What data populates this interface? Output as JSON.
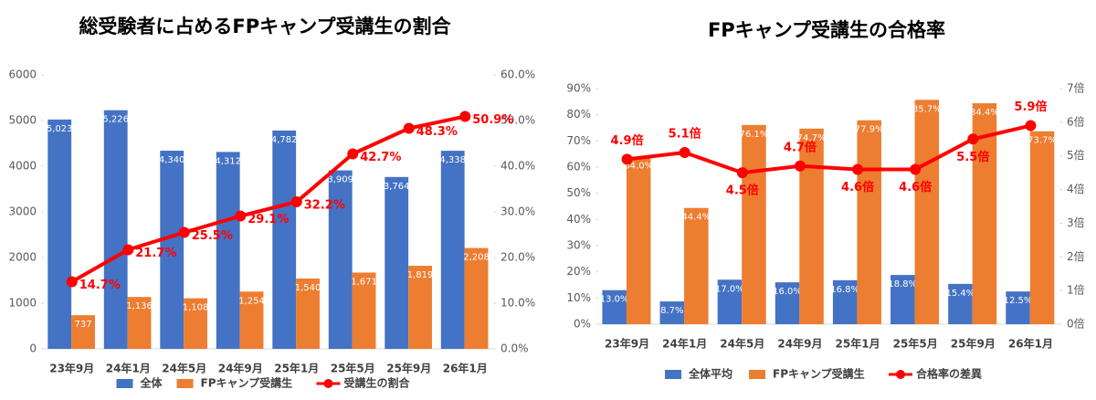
{
  "chart_data": [
    {
      "type": "bar",
      "title": "総受験者に占めるFPキャンプ受講生の割合",
      "categories": [
        "23年9月",
        "24年1月",
        "24年5月",
        "24年9月",
        "25年1月",
        "25年5月",
        "25年9月",
        "26年1月"
      ],
      "series": [
        {
          "name": "全体",
          "color": "#4472c4",
          "values": [
            5023,
            5226,
            4340,
            4312,
            4782,
            3909,
            3764,
            4338
          ],
          "value_labels": [
            "5,023",
            "5,226",
            "4,340",
            "4,312",
            "4,782",
            "3,909",
            "3,764",
            "4,338"
          ]
        },
        {
          "name": "FPキャンプ受講生",
          "color": "#ed7d31",
          "values": [
            737,
            1136,
            1108,
            1254,
            1540,
            1671,
            1819,
            2208
          ],
          "value_labels": [
            "737",
            "1,136",
            "1,108",
            "1,254",
            "1,540",
            "1,671",
            "1,819",
            "2,208"
          ]
        },
        {
          "name": "受講生の割合",
          "color": "#ff0000",
          "type": "line",
          "axis": "y2",
          "values": [
            14.7,
            21.7,
            25.5,
            29.1,
            32.2,
            42.7,
            48.3,
            50.9
          ],
          "value_labels": [
            "14.7%",
            "21.7%",
            "25.5%",
            "29.1%",
            "32.2%",
            "42.7%",
            "48.3%",
            "50.9%"
          ]
        }
      ],
      "ylim": [
        0,
        6000
      ],
      "yticks": [
        0,
        1000,
        2000,
        3000,
        4000,
        5000,
        6000
      ],
      "y2lim": [
        0,
        60
      ],
      "y2ticks": [
        {
          "value": 0,
          "label": "0.0%"
        },
        {
          "value": 10,
          "label": "10.0%"
        },
        {
          "value": 20,
          "label": "20.0%"
        },
        {
          "value": 30,
          "label": "30.0%"
        },
        {
          "value": 40,
          "label": "40.0%"
        },
        {
          "value": 50,
          "label": "50.0%"
        },
        {
          "value": 60,
          "label": "60.0%"
        }
      ],
      "grid": false
    },
    {
      "type": "bar",
      "title": "FPキャンプ受講生の合格率",
      "categories": [
        "23年9月",
        "24年1月",
        "24年5月",
        "24年9月",
        "25年1月",
        "25年5月",
        "25年9月",
        "26年1月"
      ],
      "series": [
        {
          "name": "全体平均",
          "color": "#4472c4",
          "values": [
            13.0,
            8.7,
            17.0,
            16.0,
            16.8,
            18.8,
            15.4,
            12.5
          ],
          "value_labels": [
            "13.0%",
            "8.7%",
            "17.0%",
            "16.0%",
            "16.8%",
            "18.8%",
            "15.4%",
            "12.5%"
          ]
        },
        {
          "name": "FPキャンプ受講生",
          "color": "#ed7d31",
          "values": [
            64.0,
            44.4,
            76.1,
            74.7,
            77.9,
            85.7,
            84.4,
            73.7
          ],
          "value_labels": [
            "64.0%",
            "44.4%",
            "76.1%",
            "74.7%",
            "77.9%",
            "85.7%",
            "84.4%",
            "73.7%"
          ]
        },
        {
          "name": "合格率の差異",
          "color": "#ff0000",
          "type": "line",
          "axis": "y2",
          "values": [
            4.9,
            5.1,
            4.5,
            4.7,
            4.6,
            4.6,
            5.5,
            5.9
          ],
          "value_labels": [
            "4.9倍",
            "5.1倍",
            "4.5倍",
            "4.7倍",
            "4.6倍",
            "4.6倍",
            "5.5倍",
            "5.9倍"
          ]
        }
      ],
      "ylim": [
        0,
        90
      ],
      "yticks": [
        {
          "value": 0,
          "label": "0%"
        },
        {
          "value": 10,
          "label": "10%"
        },
        {
          "value": 20,
          "label": "20%"
        },
        {
          "value": 30,
          "label": "30%"
        },
        {
          "value": 40,
          "label": "40%"
        },
        {
          "value": 50,
          "label": "50%"
        },
        {
          "value": 60,
          "label": "60%"
        },
        {
          "value": 70,
          "label": "70%"
        },
        {
          "value": 80,
          "label": "80%"
        },
        {
          "value": 90,
          "label": "90%"
        }
      ],
      "y2lim": [
        0,
        7
      ],
      "y2ticks": [
        {
          "value": 0,
          "label": "0倍"
        },
        {
          "value": 1,
          "label": "1倍"
        },
        {
          "value": 2,
          "label": "2倍"
        },
        {
          "value": 3,
          "label": "3倍"
        },
        {
          "value": 4,
          "label": "4倍"
        },
        {
          "value": 5,
          "label": "5倍"
        },
        {
          "value": 6,
          "label": "6倍"
        },
        {
          "value": 7,
          "label": "7倍"
        }
      ],
      "grid": false
    }
  ]
}
